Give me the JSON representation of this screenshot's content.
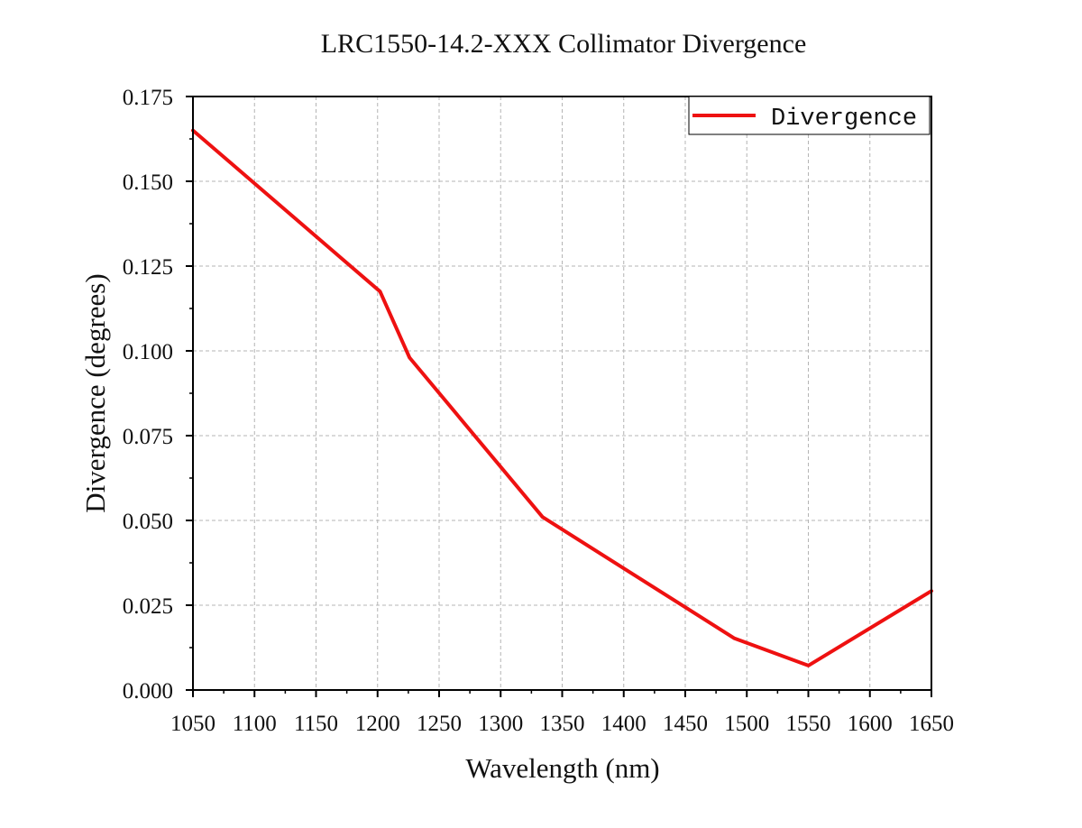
{
  "chart_data": {
    "type": "line",
    "title": "LRC1550-14.2-XXX Collimator Divergence",
    "xlabel": "Wavelength (nm)",
    "ylabel": "Divergence (degrees)",
    "xlim": [
      1050,
      1650
    ],
    "ylim": [
      0,
      0.175
    ],
    "xticks": [
      1050,
      1100,
      1150,
      1200,
      1250,
      1300,
      1350,
      1400,
      1450,
      1500,
      1550,
      1600,
      1650
    ],
    "yticks": [
      0,
      0.025,
      0.05,
      0.075,
      0.1,
      0.125,
      0.15,
      0.175
    ],
    "xtick_labels": [
      "1050",
      "1100",
      "1150",
      "1200",
      "1250",
      "1300",
      "1350",
      "1400",
      "1450",
      "1500",
      "1550",
      "1600",
      "1650"
    ],
    "ytick_labels": [
      "0.000",
      "0.025",
      "0.050",
      "0.075",
      "0.100",
      "0.125",
      "0.150",
      "0.175"
    ],
    "grid": true,
    "legend_position": "top-right",
    "series": [
      {
        "name": "Divergence",
        "color": "#ee1111",
        "x": [
          1050,
          1202,
          1226,
          1334,
          1490,
          1550,
          1650
        ],
        "y": [
          0.165,
          0.1175,
          0.098,
          0.051,
          0.0152,
          0.0072,
          0.0292
        ]
      }
    ]
  }
}
